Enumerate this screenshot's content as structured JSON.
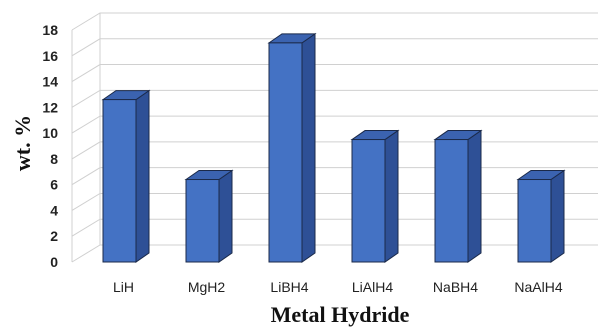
{
  "chart_data": {
    "type": "bar",
    "style": "3d-column",
    "categories": [
      "LiH",
      "MgH2",
      "LiBH4",
      "LiAlH4",
      "NaBH4",
      "NaAlH4"
    ],
    "values": [
      12.6,
      6.4,
      17.0,
      9.5,
      9.5,
      6.4
    ],
    "xlabel": "Metal Hydride",
    "ylabel": "wt. %",
    "ylim": [
      0,
      18
    ],
    "yticks": [
      "0",
      "2",
      "4",
      "6",
      "8",
      "10",
      "12",
      "14",
      "16",
      "18"
    ],
    "grid": true,
    "legend": "none",
    "colors": {
      "bar_front": "#4472C4",
      "bar_side": "#2E5096",
      "bar_top": "#3B63B0",
      "bar_edge": "#1B2A4A",
      "grid": "#D0D0D0"
    }
  }
}
